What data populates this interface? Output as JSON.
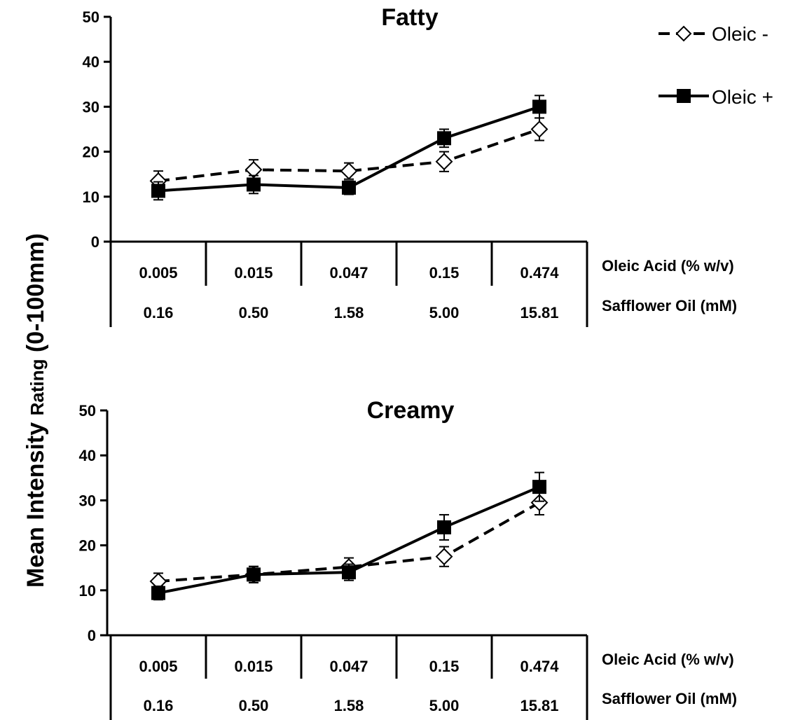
{
  "figure": {
    "ylabel_main": "Mean Intensity ",
    "ylabel_rating": "Rating",
    "ylabel_range": " (0-100mm)"
  },
  "legend": {
    "placement": "top-right",
    "items": [
      {
        "label": "Oleic -",
        "marker": "open-diamond",
        "line": "dashed",
        "fill": "#ffffff",
        "stroke": "#000000"
      },
      {
        "label": "Oleic +",
        "marker": "filled-square",
        "line": "solid",
        "fill": "#000000",
        "stroke": "#000000"
      }
    ]
  },
  "category_rows": [
    {
      "label": "Oleic Acid (% w/v)",
      "values": [
        "0.005",
        "0.015",
        "0.047",
        "0.15",
        "0.474"
      ]
    },
    {
      "label": "Safflower Oil (mM)",
      "values": [
        "0.16",
        "0.50",
        "1.58",
        "5.00",
        "15.81"
      ]
    }
  ],
  "chart_data": [
    {
      "type": "line",
      "title": "Fatty",
      "ylim": [
        0,
        50
      ],
      "yticks": [
        0,
        10,
        20,
        30,
        40,
        50
      ],
      "grid": false,
      "categories": [
        "0.005",
        "0.015",
        "0.047",
        "0.15",
        "0.474"
      ],
      "series": [
        {
          "name": "Oleic -",
          "values": [
            13.5,
            16,
            15.7,
            17.8,
            25
          ],
          "error": [
            2.2,
            2.2,
            1.8,
            2.2,
            2.5
          ]
        },
        {
          "name": "Oleic +",
          "values": [
            11.3,
            12.7,
            12,
            23,
            30
          ],
          "error": [
            2,
            2,
            1.5,
            2,
            2.5
          ]
        }
      ]
    },
    {
      "type": "line",
      "title": "Creamy",
      "ylim": [
        0,
        50
      ],
      "yticks": [
        0,
        10,
        20,
        30,
        40,
        50
      ],
      "grid": false,
      "categories": [
        "0.005",
        "0.015",
        "0.047",
        "0.15",
        "0.474"
      ],
      "series": [
        {
          "name": "Oleic -",
          "values": [
            12,
            13.5,
            15.2,
            17.5,
            29.5
          ],
          "error": [
            1.8,
            1.8,
            2,
            2.2,
            2.7
          ]
        },
        {
          "name": "Oleic +",
          "values": [
            9.4,
            13.5,
            14,
            24,
            33
          ],
          "error": [
            1.5,
            1.8,
            1.8,
            2.8,
            3.2
          ]
        }
      ]
    }
  ]
}
